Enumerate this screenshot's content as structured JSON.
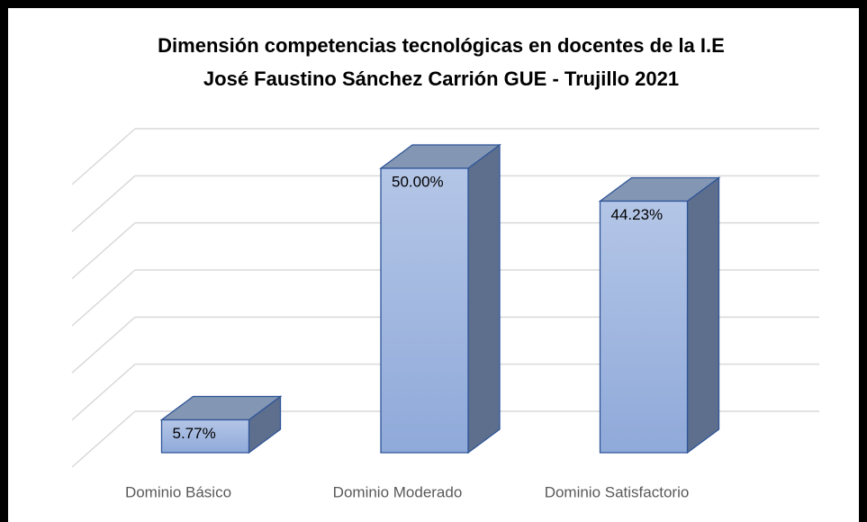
{
  "chart_data": {
    "type": "bar3d",
    "title": "Dimensión competencias tecnológicas en docentes de la I.E",
    "subtitle": "José Faustino Sánchez Carrión GUE - Trujillo 2021",
    "categories": [
      "Dominio Básico",
      "Dominio Moderado",
      "Dominio Satisfactorio"
    ],
    "values": [
      5.77,
      50.0,
      44.23
    ],
    "value_labels": [
      "5.77%",
      "50.00%",
      "44.23%"
    ],
    "color": "#a3b8de",
    "ylim": [
      0,
      60
    ],
    "yticks": [
      0,
      10,
      20,
      30,
      40,
      50,
      60
    ],
    "grid": true
  }
}
